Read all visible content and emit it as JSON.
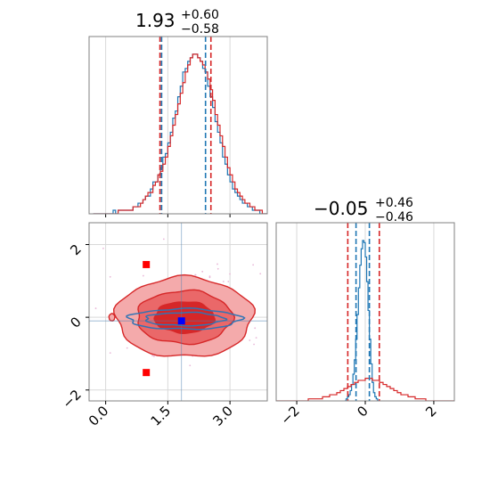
{
  "chart_data": [
    {
      "panel": "top-left-marginal",
      "type": "histogram",
      "title_main": "1.93",
      "title_plus": "+0.60",
      "title_minus": "−0.58",
      "xlim": [
        -0.4,
        3.9
      ],
      "grid": true,
      "bin_edges_range": [
        -0.3,
        3.9
      ],
      "series": [
        {
          "name": "",
          "color": "#1f77b4",
          "counts": [
            0,
            0,
            0,
            0,
            0,
            0,
            0,
            0,
            1,
            0,
            1,
            1,
            1,
            1,
            1,
            1,
            2,
            2,
            3,
            3,
            4,
            5,
            5,
            7,
            9,
            9,
            11,
            13,
            16,
            17,
            20,
            23,
            27,
            29,
            33,
            36,
            40,
            41,
            43,
            44,
            45,
            45,
            44,
            43,
            41,
            40,
            36,
            33,
            30,
            26,
            23,
            20,
            16,
            14,
            11,
            9,
            7,
            6,
            5,
            4,
            3,
            3,
            2,
            2,
            1,
            1,
            1,
            0,
            0,
            0
          ],
          "quantile_lines": [
            1.35,
            2.41
          ]
        },
        {
          "name": "",
          "color": "#d62728",
          "counts": [
            0,
            0,
            0,
            0,
            0,
            0,
            0,
            0,
            0,
            0,
            1,
            1,
            1,
            1,
            1,
            1,
            2,
            2,
            2,
            3,
            4,
            5,
            6,
            6,
            8,
            9,
            11,
            12,
            14,
            16,
            19,
            22,
            25,
            28,
            31,
            34,
            37,
            40,
            42,
            44,
            45,
            45,
            44,
            43,
            42,
            40,
            38,
            35,
            32,
            28,
            25,
            22,
            19,
            16,
            13,
            11,
            9,
            7,
            6,
            5,
            4,
            3,
            3,
            2,
            2,
            1,
            1,
            1,
            0,
            0
          ],
          "quantile_lines": [
            1.31,
            2.54
          ]
        }
      ]
    },
    {
      "panel": "bottom-left-joint",
      "type": "contour",
      "xlim": [
        -0.4,
        3.9
      ],
      "ylim": [
        -2.3,
        2.6
      ],
      "xticks": [
        "0.0",
        "1.5",
        "3.0"
      ],
      "yticks": [
        "−2",
        "0",
        "2"
      ],
      "grid": true,
      "red_levels": [
        {
          "cx": 1.9,
          "cy": 0.0,
          "rx": 1.65,
          "ry": 1.1
        },
        {
          "cx": 1.9,
          "cy": 0.0,
          "rx": 1.15,
          "ry": 0.73
        },
        {
          "cx": 1.9,
          "cy": 0.0,
          "rx": 0.72,
          "ry": 0.43
        }
      ],
      "blue_levels": [
        {
          "cx": 1.9,
          "cy": -0.05,
          "rx": 1.35,
          "ry": 0.28
        },
        {
          "cx": 1.9,
          "cy": -0.05,
          "rx": 0.95,
          "ry": 0.18
        }
      ],
      "red_markers": [
        {
          "x": 0.98,
          "y": 1.45
        },
        {
          "x": 0.98,
          "y": -1.52
        }
      ],
      "blue_marker": {
        "x": 1.83,
        "y": -0.1
      },
      "truth_x": 1.83,
      "truth_y": -0.1,
      "truth_color": "#4a7fb0"
    },
    {
      "panel": "bottom-right-marginal",
      "type": "histogram",
      "title_main": "−0.05",
      "title_plus": "+0.46",
      "title_minus": "−0.46",
      "xlim": [
        -2.6,
        2.6
      ],
      "xticks": [
        "−2",
        "0",
        "2"
      ],
      "grid": true,
      "series": [
        {
          "name": "",
          "color": "#1f77b4",
          "bin_range": [
            -0.6,
            0.4
          ],
          "counts": [
            0,
            1,
            2,
            3,
            5,
            8,
            13,
            20,
            30,
            42,
            55,
            66,
            74,
            78,
            77,
            70,
            58,
            44,
            30,
            18,
            9,
            4,
            2,
            1,
            0
          ],
          "quantile_lines": [
            -0.27,
            0.12
          ]
        },
        {
          "name": "",
          "color": "#d62728",
          "bin_range": [
            -2.6,
            2.6
          ],
          "counts": [
            0,
            0,
            0,
            0,
            0,
            0,
            0,
            0,
            0,
            1,
            1,
            1,
            1,
            2,
            2,
            3,
            3,
            4,
            5,
            6,
            7,
            8,
            9,
            10,
            10,
            11,
            11,
            10,
            10,
            9,
            8,
            7,
            6,
            5,
            4,
            3,
            3,
            2,
            2,
            1,
            1,
            1,
            0,
            0,
            0,
            0,
            0,
            0,
            0,
            0
          ],
          "quantile_lines": [
            -0.51,
            0.41
          ]
        }
      ]
    }
  ]
}
